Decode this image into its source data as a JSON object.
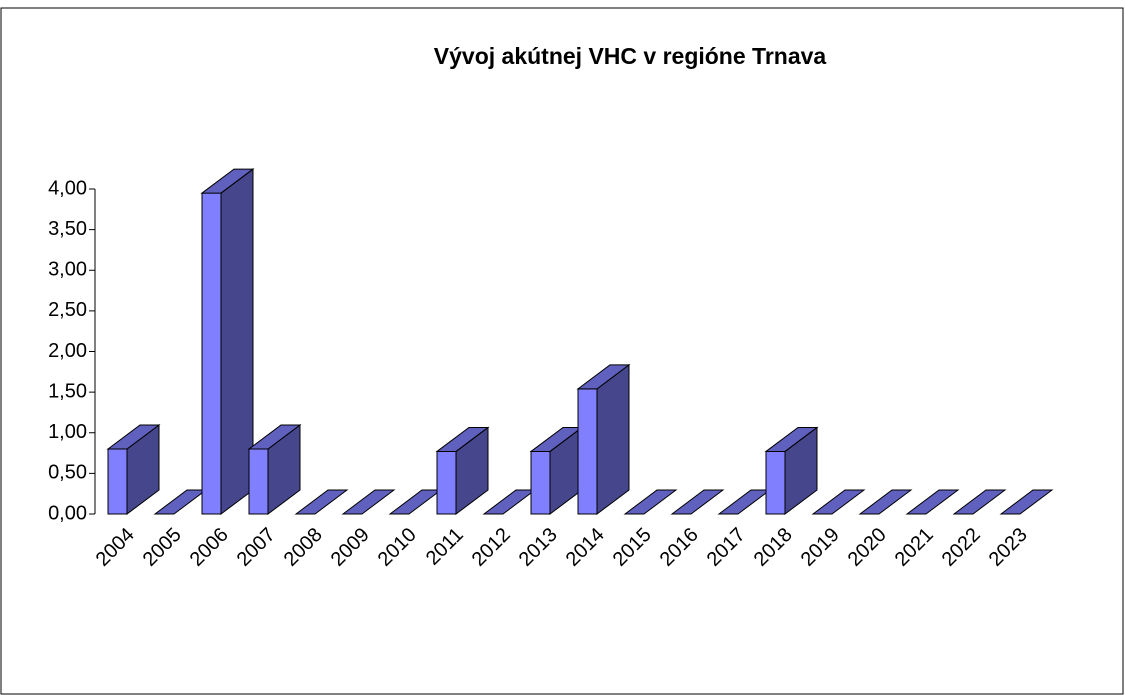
{
  "chart_data": {
    "type": "bar3d",
    "title": "Vývoj akútnej VHC v regióne Trnava",
    "categories": [
      "2004",
      "2005",
      "2006",
      "2007",
      "2008",
      "2009",
      "2010",
      "2011",
      "2012",
      "2013",
      "2014",
      "2015",
      "2016",
      "2017",
      "2018",
      "2019",
      "2020",
      "2021",
      "2022",
      "2023"
    ],
    "values": [
      0.8,
      0,
      3.95,
      0.8,
      0,
      0,
      0,
      0.77,
      0,
      0.77,
      1.54,
      0,
      0,
      0,
      0.77,
      0,
      0,
      0,
      0,
      0
    ],
    "color": "#8080ff",
    "ylim": [
      0,
      4
    ],
    "yticks": [
      {
        "value": 0,
        "label": "0,00"
      },
      {
        "value": 0.5,
        "label": "0,50"
      },
      {
        "value": 1,
        "label": "1,00"
      },
      {
        "value": 1.5,
        "label": "1,50"
      },
      {
        "value": 2,
        "label": "2,00"
      },
      {
        "value": 2.5,
        "label": "2,50"
      },
      {
        "value": 3,
        "label": "3,00"
      },
      {
        "value": 3.5,
        "label": "3,50"
      },
      {
        "value": 4,
        "label": "4,00"
      }
    ]
  }
}
